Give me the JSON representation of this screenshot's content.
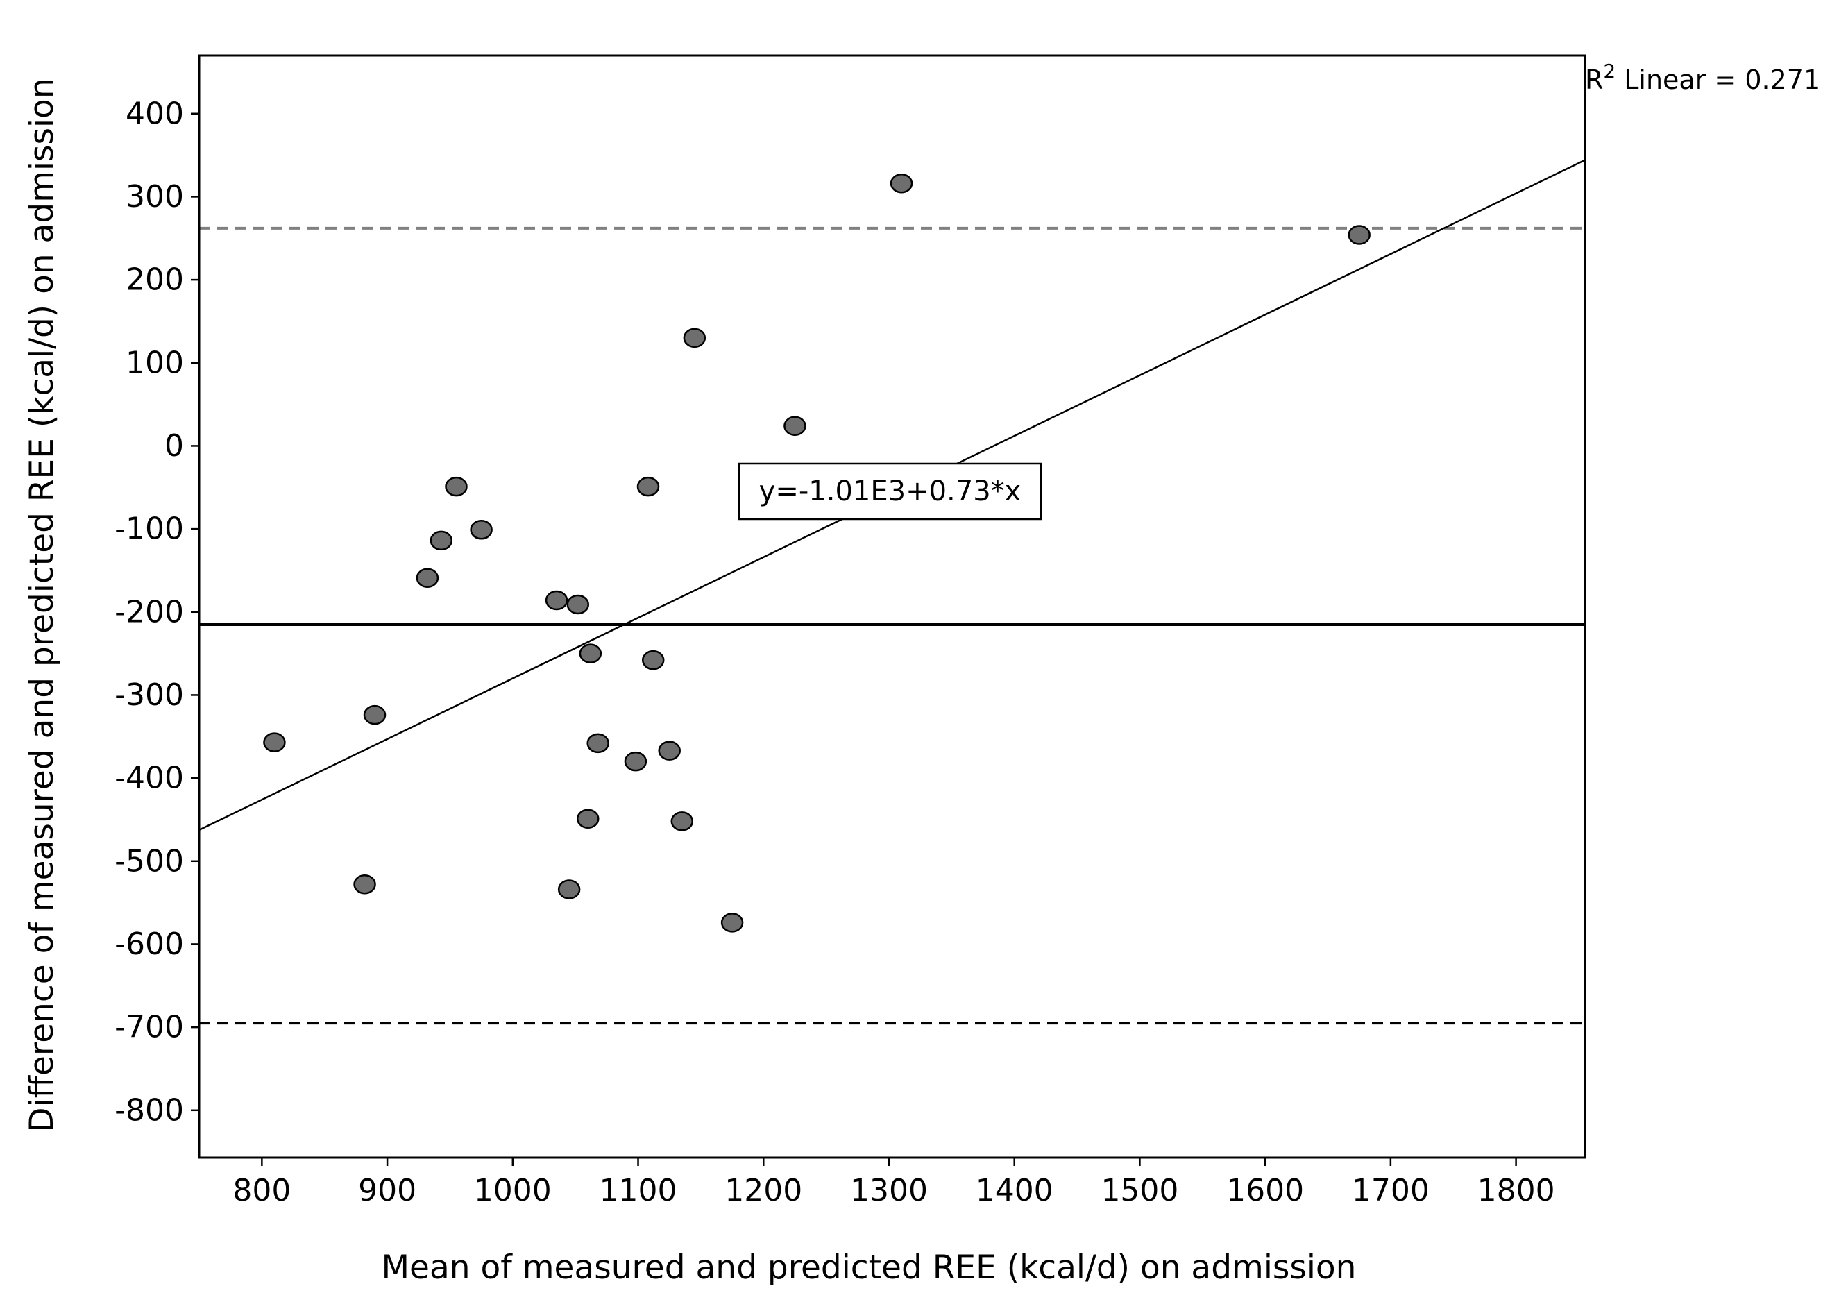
{
  "chart_data": {
    "type": "scatter",
    "title": "",
    "xlabel": "Mean of measured and predicted REE (kcal/d) on admission",
    "ylabel": "Difference of measured and predicted REE (kcal/d) on admission",
    "xlim": [
      750,
      1855
    ],
    "ylim": [
      -857,
      470
    ],
    "x_ticks": [
      800,
      900,
      1000,
      1100,
      1200,
      1300,
      1400,
      1500,
      1600,
      1700,
      1800
    ],
    "y_ticks": [
      400,
      300,
      200,
      100,
      0,
      -100,
      -200,
      -300,
      -400,
      -500,
      -600,
      -700,
      -800
    ],
    "grid": false,
    "points": [
      {
        "x": 810,
        "y": -357
      },
      {
        "x": 882,
        "y": -528
      },
      {
        "x": 890,
        "y": -324
      },
      {
        "x": 932,
        "y": -159
      },
      {
        "x": 943,
        "y": -114
      },
      {
        "x": 955,
        "y": -49
      },
      {
        "x": 975,
        "y": -101
      },
      {
        "x": 1035,
        "y": -186
      },
      {
        "x": 1045,
        "y": -534
      },
      {
        "x": 1052,
        "y": -191
      },
      {
        "x": 1060,
        "y": -449
      },
      {
        "x": 1062,
        "y": -250
      },
      {
        "x": 1068,
        "y": -358
      },
      {
        "x": 1098,
        "y": -380
      },
      {
        "x": 1108,
        "y": -49
      },
      {
        "x": 1112,
        "y": -258
      },
      {
        "x": 1125,
        "y": -367
      },
      {
        "x": 1135,
        "y": -452
      },
      {
        "x": 1145,
        "y": 130
      },
      {
        "x": 1175,
        "y": -574
      },
      {
        "x": 1225,
        "y": 24
      },
      {
        "x": 1310,
        "y": 316
      },
      {
        "x": 1675,
        "y": 254
      }
    ],
    "fit_line": {
      "equation": "y=-1.01E3+0.73*x",
      "intercept": -1010,
      "slope": 0.73,
      "r2_label": "Linear = 0.271",
      "r2_prefix": "R",
      "r2_superscript": "2"
    },
    "reference_lines": [
      {
        "y": 262,
        "style": "dashed",
        "color": "#808080"
      },
      {
        "y": -215,
        "style": "solid",
        "color": "#000000"
      },
      {
        "y": -695,
        "style": "dashed",
        "color": "#000000"
      }
    ],
    "colors": {
      "marker_fill": "#6e6e6e",
      "marker_stroke": "#000000",
      "axis": "#000000"
    }
  }
}
